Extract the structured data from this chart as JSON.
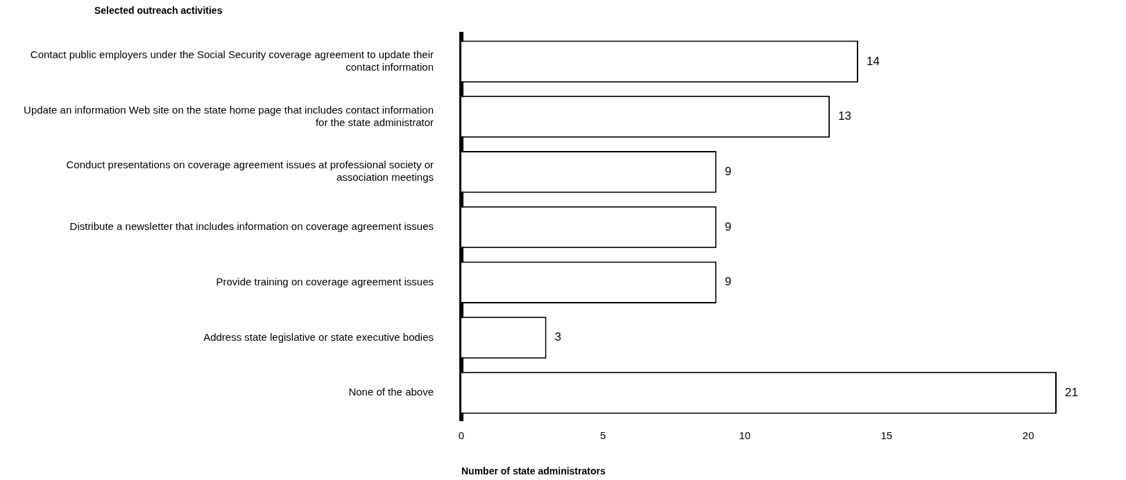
{
  "chart_data": {
    "type": "bar",
    "orientation": "horizontal",
    "ylabel": "Selected outreach activities",
    "xlabel": "Number of state administrators",
    "categories": [
      "Contact public employers under the Social Security coverage agreement to update their contact information",
      "Update an information Web site on the state home page that includes contact information for the state administrator",
      "Conduct presentations on coverage agreement issues at professional society or association meetings",
      "Distribute a newsletter that includes information on coverage agreement issues",
      "Provide training on coverage agreement issues",
      "Address state legislative or state executive bodies",
      "None of the above"
    ],
    "values": [
      14,
      13,
      9,
      9,
      9,
      3,
      21
    ],
    "color": "#ffffff",
    "xlim": [
      0,
      21
    ],
    "xticks": [
      0,
      5,
      10,
      15,
      20
    ],
    "grid": false,
    "legend": false,
    "data_labels": true
  }
}
